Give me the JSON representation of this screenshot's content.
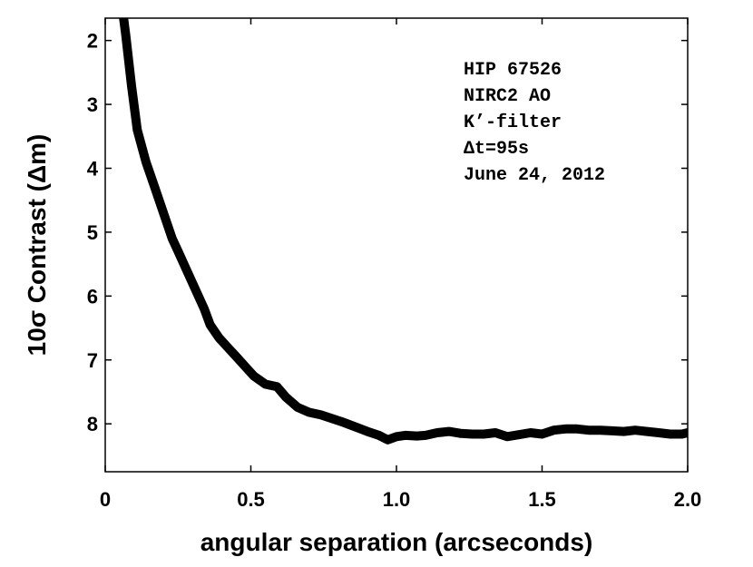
{
  "chart_data": {
    "type": "line",
    "title": "",
    "xlabel": "angular separation (arcseconds)",
    "ylabel": "10σ Contrast (Δm)",
    "xlim": [
      0,
      2.0
    ],
    "ylim": [
      1.65,
      8.75
    ],
    "y_inverted": true,
    "grid": false,
    "x_ticks": [
      0,
      0.5,
      1.0,
      1.5,
      2.0
    ],
    "x_tick_labels": [
      "0",
      "0.5",
      "1.0",
      "1.5",
      "2.0"
    ],
    "y_ticks": [
      2,
      3,
      4,
      5,
      6,
      7,
      8
    ],
    "y_tick_labels": [
      "2",
      "3",
      "4",
      "5",
      "6",
      "7",
      "8"
    ],
    "line_color": "#000000",
    "annotations": [
      "HIP 67526",
      "NIRC2 AO",
      "K’-filter",
      "Δt=95s",
      "June 24, 2012"
    ],
    "series": [
      {
        "x": [
          0.05,
          0.07,
          0.09,
          0.11,
          0.14,
          0.17,
          0.2,
          0.23,
          0.25,
          0.28,
          0.31,
          0.34,
          0.36,
          0.39,
          0.42,
          0.45,
          0.48,
          0.51,
          0.55,
          0.59,
          0.62,
          0.66,
          0.7,
          0.74,
          0.78,
          0.82,
          0.86,
          0.9,
          0.94,
          0.97,
          1.0,
          1.03,
          1.07,
          1.1,
          1.14,
          1.18,
          1.22,
          1.26,
          1.3,
          1.34,
          1.38,
          1.42,
          1.46,
          1.5,
          1.54,
          1.58,
          1.62,
          1.66,
          1.7,
          1.74,
          1.78,
          1.82,
          1.86,
          1.9,
          1.94,
          1.98,
          2.0
        ],
        "y": [
          1.2,
          1.9,
          2.7,
          3.4,
          3.9,
          4.3,
          4.7,
          5.1,
          5.3,
          5.6,
          5.9,
          6.2,
          6.45,
          6.65,
          6.8,
          6.95,
          7.1,
          7.25,
          7.38,
          7.42,
          7.58,
          7.74,
          7.82,
          7.86,
          7.92,
          7.98,
          8.05,
          8.12,
          8.18,
          8.25,
          8.2,
          8.18,
          8.19,
          8.18,
          8.14,
          8.12,
          8.15,
          8.16,
          8.16,
          8.14,
          8.2,
          8.17,
          8.14,
          8.16,
          8.1,
          8.08,
          8.08,
          8.1,
          8.1,
          8.11,
          8.12,
          8.1,
          8.12,
          8.14,
          8.16,
          8.16,
          8.14
        ]
      }
    ]
  }
}
